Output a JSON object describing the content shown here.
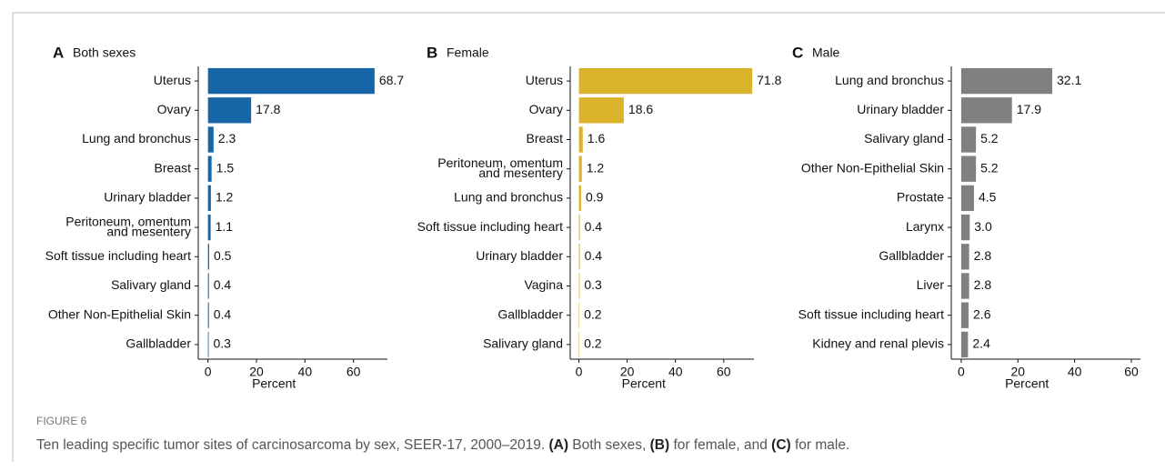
{
  "chart_data": [
    {
      "type": "bar",
      "panel": "A",
      "title": "Both sexes",
      "x_label": "Percent",
      "color": "#1565a7",
      "categories": [
        "Uterus",
        "Ovary",
        "Lung and bronchus",
        "Breast",
        "Urinary bladder",
        "Peritoneum, omentum\nand mesentery",
        "Soft tissue including heart",
        "Salivary gland",
        "Other Non-Epithelial Skin",
        "Gallbladder"
      ],
      "values": [
        68.7,
        17.8,
        2.3,
        1.5,
        1.2,
        1.1,
        0.5,
        0.4,
        0.4,
        0.3
      ],
      "value_labels": [
        "68.7",
        "17.8",
        "2.3",
        "1.5",
        "1.2",
        "1.1",
        "0.5",
        "0.4",
        "0.4",
        "0.3"
      ],
      "xlim": [
        -4,
        74
      ],
      "xticks": [
        0,
        20,
        40,
        60
      ]
    },
    {
      "type": "bar",
      "panel": "B",
      "title": "Female",
      "x_label": "Percent",
      "color": "#dbb32a",
      "categories": [
        "Uterus",
        "Ovary",
        "Breast",
        "Peritoneum, omentum\nand mesentery",
        "Lung and bronchus",
        "Soft tissue including heart",
        "Urinary bladder",
        "Vagina",
        "Gallbladder",
        "Salivary gland"
      ],
      "values": [
        71.8,
        18.6,
        1.6,
        1.2,
        0.9,
        0.4,
        0.4,
        0.3,
        0.2,
        0.2
      ],
      "value_labels": [
        "71.8",
        "18.6",
        "1.6",
        "1.2",
        "0.9",
        "0.4",
        "0.4",
        "0.3",
        "0.2",
        "0.2"
      ],
      "xlim": [
        -3.6,
        72.5
      ],
      "xticks": [
        0,
        20,
        40,
        60
      ]
    },
    {
      "type": "bar",
      "panel": "C",
      "title": "Male",
      "x_label": "Percent",
      "color": "#808080",
      "categories": [
        "Lung and bronchus",
        "Urinary bladder",
        "Salivary gland",
        "Other Non-Epithelial Skin",
        "Prostate",
        "Larynx",
        "Gallbladder",
        "Liver",
        "Soft tissue including heart",
        "Kidney and renal plevis"
      ],
      "values": [
        32.1,
        17.9,
        5.2,
        5.2,
        4.5,
        3.0,
        2.8,
        2.8,
        2.6,
        2.4
      ],
      "value_labels": [
        "32.1",
        "17.9",
        "5.2",
        "5.2",
        "4.5",
        "3.0",
        "2.8",
        "2.8",
        "2.6",
        "2.4"
      ],
      "xlim": [
        -3.5,
        63.2
      ],
      "xticks": [
        0,
        20,
        40,
        60
      ]
    }
  ],
  "figure_label": "FIGURE 6",
  "caption": [
    "Ten leading specific tumor sites of carcinosarcoma by sex, SEER-17, 2000–2019. ",
    "(A)",
    " Both sexes, ",
    "(B)",
    " for female, and ",
    "(C)",
    " for male."
  ]
}
